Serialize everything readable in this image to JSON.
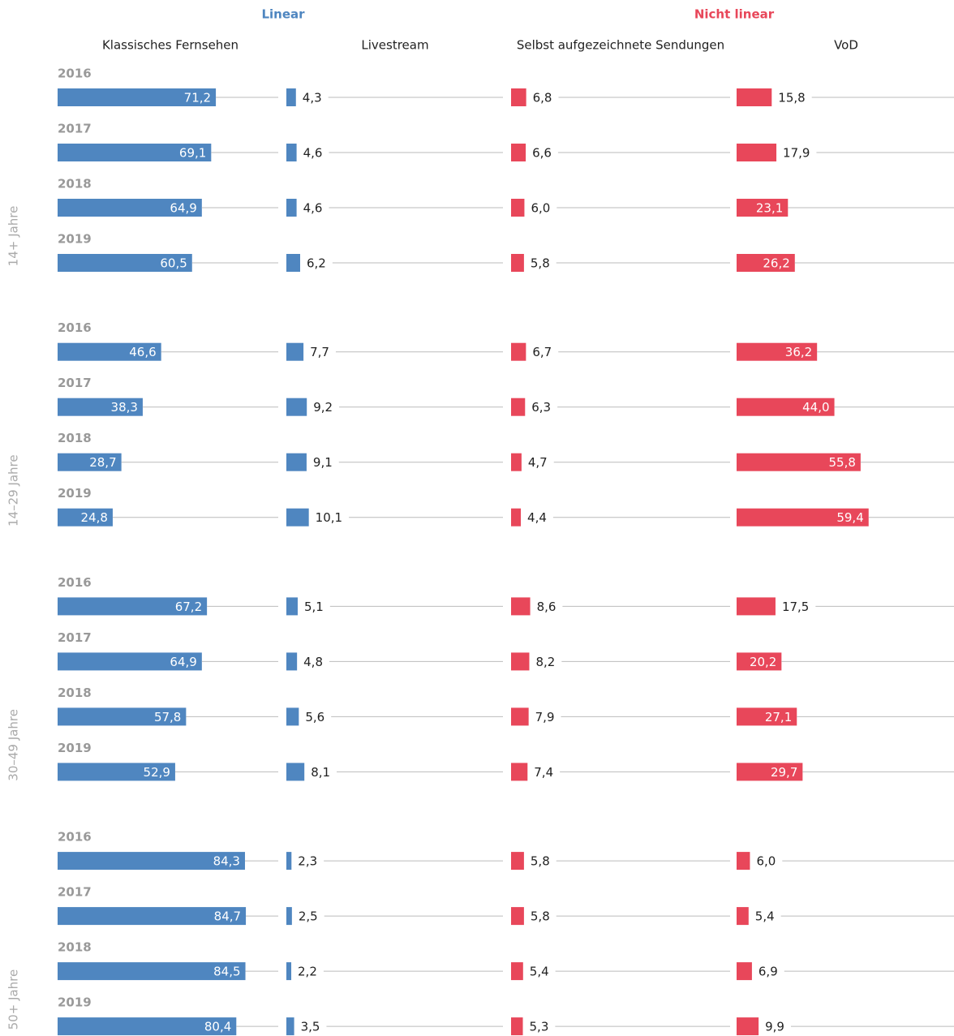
{
  "chart_data": {
    "type": "bar",
    "headers": [
      "Linear",
      "Nicht linear"
    ],
    "panels": [
      "14+ Jahre",
      "14–29 Jahre",
      "30–49 Jahre",
      "50+ Jahre"
    ],
    "categories": [
      "2016",
      "2017",
      "2018",
      "2019",
      "2016",
      "2017",
      "2018",
      "2019",
      "2016",
      "2017",
      "2018",
      "2019",
      "2016",
      "2017",
      "2018",
      "2019"
    ],
    "xlim": [
      0,
      100
    ],
    "series": [
      {
        "name": "Klassisches Fernsehen",
        "color": "#4f86c0",
        "values": [
          71.2,
          69.1,
          64.9,
          60.5,
          46.6,
          38.3,
          28.7,
          24.8,
          67.2,
          64.9,
          57.8,
          52.9,
          84.3,
          84.7,
          84.5,
          80.4
        ],
        "value_labels": [
          "71,2",
          "69,1",
          "64,9",
          "60,5",
          "46,6",
          "38,3",
          "28,7",
          "24,8",
          "67,2",
          "64,9",
          "57,8",
          "52,9",
          "84,3",
          "84,7",
          "84,5",
          "80,4"
        ]
      },
      {
        "name": "Livestream",
        "color": "#4f86c0",
        "values": [
          4.3,
          4.6,
          4.6,
          6.2,
          7.7,
          9.2,
          9.1,
          10.1,
          5.1,
          4.8,
          5.6,
          8.1,
          2.3,
          2.5,
          2.2,
          3.5
        ],
        "value_labels": [
          "4,3",
          "4,6",
          "4,6",
          "6,2",
          "7,7",
          "9,2",
          "9,1",
          "10,1",
          "5,1",
          "4,8",
          "5,6",
          "8,1",
          "2,3",
          "2,5",
          "2,2",
          "3,5"
        ]
      },
      {
        "name": "Selbst aufgezeichnete Sendungen",
        "color": "#e8475a",
        "values": [
          6.8,
          6.6,
          6.0,
          5.8,
          6.7,
          6.3,
          4.7,
          4.4,
          8.6,
          8.2,
          7.9,
          7.4,
          5.8,
          5.8,
          5.4,
          5.3
        ],
        "value_labels": [
          "6,8",
          "6,6",
          "6,0",
          "5,8",
          "6,7",
          "6,3",
          "4,7",
          "4,4",
          "8,6",
          "8,2",
          "7,9",
          "7,4",
          "5,8",
          "5,8",
          "5,4",
          "5,3"
        ]
      },
      {
        "name": "VoD",
        "color": "#e8475a",
        "values": [
          15.8,
          17.9,
          23.1,
          26.2,
          36.2,
          44.0,
          55.8,
          59.4,
          17.5,
          20.2,
          27.1,
          29.7,
          6.0,
          5.4,
          6.9,
          9.9
        ],
        "value_labels": [
          "15,8",
          "17,9",
          "23,1",
          "26,2",
          "36,2",
          "44,0",
          "55,8",
          "59,4",
          "17,5",
          "20,2",
          "27,1",
          "29,7",
          "6,0",
          "5,4",
          "6,9",
          "9,9"
        ]
      }
    ]
  }
}
